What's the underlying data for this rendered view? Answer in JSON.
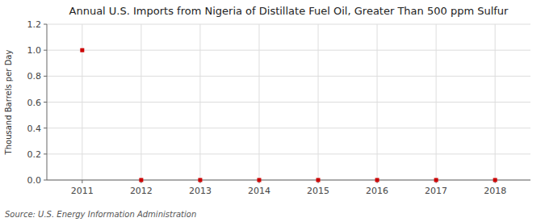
{
  "chart_data": {
    "type": "scatter",
    "title": "Annual U.S. Imports from Nigeria of Distillate Fuel Oil, Greater Than 500 ppm Sulfur",
    "ylabel": "Thousand Barrels per Day",
    "source": "Source: U.S. Energy Information Administration",
    "x": [
      2011,
      2012,
      2013,
      2014,
      2015,
      2016,
      2017,
      2018
    ],
    "values": [
      1.0,
      0.0,
      0.0,
      0.0,
      0.0,
      0.0,
      0.0,
      0.0
    ],
    "xlim": [
      2010.4,
      2018.6
    ],
    "ylim": [
      0.0,
      1.2
    ],
    "xticks": [
      2011,
      2012,
      2013,
      2014,
      2015,
      2016,
      2017,
      2018
    ],
    "yticks": [
      {
        "value": 0.0,
        "label": "0.0"
      },
      0.2,
      0.4,
      0.6,
      0.8,
      {
        "value": 1.0,
        "label": "1.0"
      },
      1.2
    ],
    "color": "#cc0000",
    "marker": "square",
    "grid": true
  }
}
